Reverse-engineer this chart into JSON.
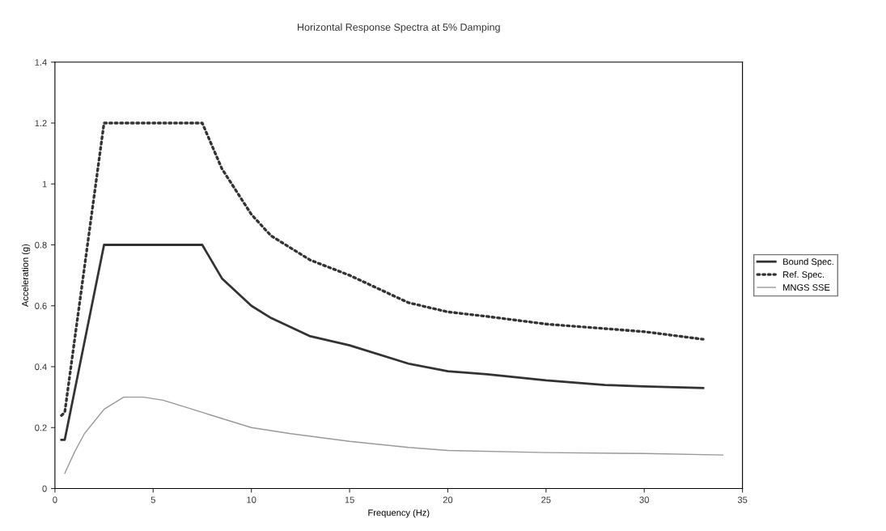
{
  "chart_data": {
    "type": "line",
    "title": "Horizontal Response Spectra at 5% Damping",
    "xlabel": "Frequency (Hz)",
    "ylabel": "Acceleration (g)",
    "xlim": [
      0,
      35
    ],
    "xticks": [
      0,
      5,
      10,
      15,
      20,
      25,
      30,
      35
    ],
    "ylim": [
      0,
      1.4
    ],
    "yticks": [
      0,
      0.2,
      0.4,
      0.6,
      0.8,
      1,
      1.2,
      1.4
    ],
    "grid": false,
    "legend": "right",
    "series": [
      {
        "name": "Bound Spec.",
        "color": "#333333",
        "line_style": "solid",
        "x": [
          0.33,
          0.5,
          2.5,
          7.5,
          8.5,
          10,
          11,
          13,
          15,
          18,
          20,
          22,
          25,
          28,
          30,
          33
        ],
        "values": [
          0.16,
          0.16,
          0.8,
          0.8,
          0.69,
          0.6,
          0.56,
          0.5,
          0.47,
          0.41,
          0.385,
          0.375,
          0.355,
          0.34,
          0.335,
          0.33
        ]
      },
      {
        "name": "Ref. Spec.",
        "color": "#333333",
        "line_style": "dotted",
        "x": [
          0.33,
          0.5,
          2.5,
          7.5,
          8.5,
          10,
          11,
          13,
          15,
          18,
          20,
          22,
          25,
          28,
          30,
          33
        ],
        "values": [
          0.24,
          0.25,
          1.2,
          1.2,
          1.05,
          0.9,
          0.83,
          0.75,
          0.7,
          0.61,
          0.58,
          0.565,
          0.54,
          0.525,
          0.515,
          0.49
        ]
      },
      {
        "name": "MNGS SSE",
        "color": "#999999",
        "line_style": "solid",
        "x": [
          0.5,
          1,
          1.5,
          2.5,
          3.5,
          4.5,
          5.5,
          7,
          8,
          10,
          12,
          15,
          18,
          20,
          25,
          30,
          34
        ],
        "values": [
          0.05,
          0.12,
          0.18,
          0.26,
          0.3,
          0.3,
          0.29,
          0.26,
          0.24,
          0.2,
          0.18,
          0.155,
          0.135,
          0.125,
          0.118,
          0.115,
          0.11
        ]
      }
    ]
  }
}
